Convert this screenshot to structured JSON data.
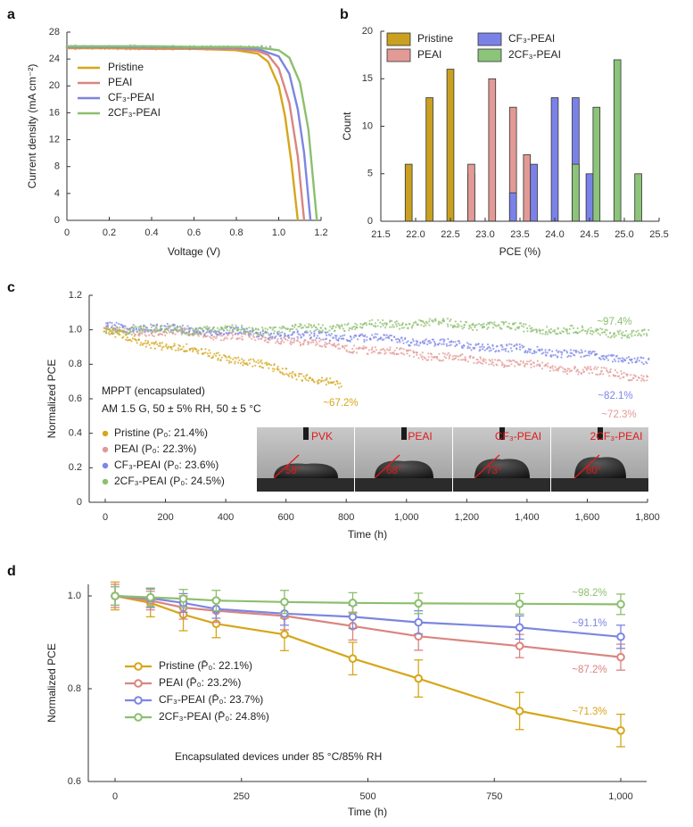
{
  "panels": [
    {
      "id": "a",
      "label": "a",
      "chart_data": {
        "type": "line",
        "xlabel": "Voltage (V)",
        "ylabel": "Current density (mA cm⁻²)",
        "xlim": [
          0,
          1.2
        ],
        "ylim": [
          0,
          28
        ],
        "xticks": [
          "0",
          "0.2",
          "0.4",
          "0.6",
          "0.8",
          "1.0",
          "1.2"
        ],
        "yticks": [
          "0",
          "4",
          "8",
          "12",
          "16",
          "20",
          "24",
          "28"
        ],
        "legend_position": "center-left",
        "series": [
          {
            "name": "Pristine",
            "color": "#D6A61A",
            "jsc": 25.6,
            "voc": 1.09,
            "x": [
              0,
              0.2,
              0.4,
              0.6,
              0.8,
              0.9,
              0.95,
              1.0,
              1.03,
              1.06,
              1.09
            ],
            "y": [
              25.6,
              25.6,
              25.5,
              25.5,
              25.3,
              24.8,
              23.6,
              20.0,
              15.5,
              8.5,
              0
            ]
          },
          {
            "name": "PEAI",
            "color": "#D98580",
            "jsc": 25.7,
            "voc": 1.12,
            "x": [
              0,
              0.2,
              0.4,
              0.6,
              0.8,
              0.9,
              0.95,
              1.0,
              1.05,
              1.09,
              1.12
            ],
            "y": [
              25.7,
              25.7,
              25.6,
              25.6,
              25.5,
              25.2,
              24.6,
              22.6,
              17.5,
              9.5,
              0
            ]
          },
          {
            "name": "CF₃-PEAI",
            "color": "#7C86E0",
            "jsc": 25.8,
            "voc": 1.15,
            "x": [
              0,
              0.2,
              0.4,
              0.6,
              0.8,
              0.9,
              1.0,
              1.05,
              1.09,
              1.12,
              1.15
            ],
            "y": [
              25.8,
              25.8,
              25.8,
              25.7,
              25.7,
              25.5,
              24.4,
              21.8,
              16.5,
              10.0,
              0
            ]
          },
          {
            "name": "2CF₃-PEAI",
            "color": "#8CBF6E",
            "jsc": 25.9,
            "voc": 1.18,
            "x": [
              0,
              0.2,
              0.4,
              0.6,
              0.8,
              0.9,
              1.0,
              1.05,
              1.1,
              1.14,
              1.18
            ],
            "y": [
              25.9,
              25.9,
              25.9,
              25.8,
              25.8,
              25.7,
              25.3,
              24.2,
              20.5,
              13.5,
              0
            ]
          }
        ]
      }
    },
    {
      "id": "b",
      "label": "b",
      "chart_data": {
        "type": "bar",
        "xlabel": "PCE (%)",
        "ylabel": "Count",
        "xlim": [
          21.5,
          25.5
        ],
        "ylim": [
          0,
          20
        ],
        "xticks": [
          "21.5",
          "22.0",
          "22.5",
          "23.0",
          "23.5",
          "24.0",
          "24.5",
          "25.0",
          "25.5"
        ],
        "yticks": [
          "0",
          "5",
          "10",
          "15",
          "20"
        ],
        "legend_position": "top",
        "bin_width": 0.1,
        "series": [
          {
            "name": "Pristine",
            "color": "#C9A020",
            "x": [
              21.9,
              22.2,
              22.5,
              22.8
            ],
            "values": [
              6,
              13,
              16,
              5
            ]
          },
          {
            "name": "PEAI",
            "color": "#E29A96",
            "x": [
              22.8,
              23.1,
              23.4,
              23.6
            ],
            "values": [
              6,
              15,
              12,
              7
            ]
          },
          {
            "name": "CF₃-PEAI",
            "color": "#7A82E8",
            "x": [
              23.4,
              23.7,
              24.0,
              24.3,
              24.5
            ],
            "values": [
              3,
              6,
              13,
              13,
              5
            ]
          },
          {
            "name": "2CF₃-PEAI",
            "color": "#8CC47A",
            "x": [
              24.3,
              24.6,
              24.9,
              25.2
            ],
            "values": [
              6,
              12,
              17,
              5
            ]
          }
        ]
      }
    },
    {
      "id": "c",
      "label": "c",
      "chart_data": {
        "type": "scatter",
        "xlabel": "Time (h)",
        "ylabel": "Normalized PCE",
        "xlim": [
          0,
          1800
        ],
        "ylim": [
          0,
          1.2
        ],
        "xticks": [
          "0",
          "200",
          "400",
          "600",
          "800",
          "1,000",
          "1,200",
          "1,400",
          "1,600",
          "1,800"
        ],
        "yticks": [
          "0",
          "0.2",
          "0.4",
          "0.6",
          "0.8",
          "1.0",
          "1.2"
        ],
        "legend_position": "bottom-left",
        "note_lines": [
          "MPPT (encapsulated)",
          "AM 1.5 G, 50 ± 5% RH, 50 ± 5 °C"
        ],
        "series": [
          {
            "name": "Pristine (P₀: 21.4%)",
            "color": "#D6A61A",
            "end_label": "~67.2%",
            "end_x": 785,
            "key_points": [
              [
                0,
                0.99
              ],
              [
                100,
                0.94
              ],
              [
                200,
                0.91
              ],
              [
                300,
                0.88
              ],
              [
                400,
                0.84
              ],
              [
                500,
                0.8
              ],
              [
                600,
                0.76
              ],
              [
                700,
                0.71
              ],
              [
                785,
                0.672
              ]
            ]
          },
          {
            "name": "PEAI (P₀: 22.3%)",
            "color": "#E29A96",
            "end_label": "~72.3%",
            "end_x": 1800,
            "key_points": [
              [
                0,
                1.0
              ],
              [
                300,
                0.98
              ],
              [
                600,
                0.94
              ],
              [
                900,
                0.88
              ],
              [
                1200,
                0.83
              ],
              [
                1500,
                0.78
              ],
              [
                1800,
                0.723
              ]
            ]
          },
          {
            "name": "CF₃-PEAI (P₀: 23.6%)",
            "color": "#7C86E8",
            "end_label": "~82.1%",
            "end_x": 1800,
            "key_points": [
              [
                0,
                1.02
              ],
              [
                300,
                1.0
              ],
              [
                600,
                0.97
              ],
              [
                900,
                0.95
              ],
              [
                1200,
                0.91
              ],
              [
                1500,
                0.87
              ],
              [
                1800,
                0.821
              ]
            ]
          },
          {
            "name": "2CF₃-PEAI (P₀: 24.5%)",
            "color": "#8CBF6E",
            "end_label": "~97.4%",
            "end_x": 1800,
            "key_points": [
              [
                0,
                1.0
              ],
              [
                300,
                1.0
              ],
              [
                600,
                1.0
              ],
              [
                900,
                1.03
              ],
              [
                1100,
                1.04
              ],
              [
                1300,
                1.02
              ],
              [
                1500,
                1.0
              ],
              [
                1800,
                0.974
              ]
            ]
          }
        ],
        "inset_images": [
          {
            "label": "PVK",
            "angle": "58°"
          },
          {
            "label": "PEAI",
            "angle": "68°"
          },
          {
            "label": "CF₃-PEAI",
            "angle": "73°"
          },
          {
            "label": "2CF₃-PEAI",
            "angle": "80°"
          }
        ]
      }
    },
    {
      "id": "d",
      "label": "d",
      "chart_data": {
        "type": "line",
        "xlabel": "Time (h)",
        "ylabel": "Normalized PCE",
        "xlim": [
          -50,
          1050
        ],
        "ylim": [
          0.6,
          1.04
        ],
        "xticks": [
          "0",
          "250",
          "500",
          "750",
          "1,000"
        ],
        "yticks": [
          "0.6",
          "0.8",
          "1.0"
        ],
        "legend_position": "center-left",
        "note": "Encapsulated devices under 85 °C/85% RH",
        "x": [
          0,
          70,
          135,
          200,
          335,
          470,
          600,
          800,
          1000
        ],
        "series": [
          {
            "name": "Pristine (P̄₀: 22.1%)",
            "color": "#D6A61A",
            "end_label": "~71.3%",
            "values": [
              1.0,
              0.985,
              0.96,
              0.94,
              0.917,
              0.865,
              0.822,
              0.752,
              0.71
            ],
            "errors": [
              0.03,
              0.03,
              0.035,
              0.03,
              0.035,
              0.035,
              0.04,
              0.04,
              0.035
            ]
          },
          {
            "name": "PEAI (P̄₀: 23.2%)",
            "color": "#D98580",
            "end_label": "~87.2%",
            "values": [
              1.0,
              0.99,
              0.975,
              0.968,
              0.957,
              0.935,
              0.913,
              0.892,
              0.868
            ],
            "errors": [
              0.025,
              0.02,
              0.025,
              0.025,
              0.03,
              0.03,
              0.03,
              0.025,
              0.028
            ]
          },
          {
            "name": "CF₃-PEAI (P̄₀: 23.7%)",
            "color": "#7C86E0",
            "end_label": "~91.1%",
            "values": [
              1.0,
              0.995,
              0.985,
              0.972,
              0.962,
              0.955,
              0.943,
              0.932,
              0.912
            ],
            "errors": [
              0.02,
              0.02,
              0.02,
              0.02,
              0.025,
              0.025,
              0.025,
              0.025,
              0.025
            ]
          },
          {
            "name": "2CF₃-PEAI (P̄₀: 24.8%)",
            "color": "#8CBF6E",
            "end_label": "~98.2%",
            "values": [
              1.0,
              0.997,
              0.994,
              0.99,
              0.987,
              0.985,
              0.984,
              0.983,
              0.982
            ],
            "errors": [
              0.02,
              0.02,
              0.02,
              0.022,
              0.025,
              0.022,
              0.022,
              0.022,
              0.022
            ]
          }
        ]
      }
    }
  ]
}
